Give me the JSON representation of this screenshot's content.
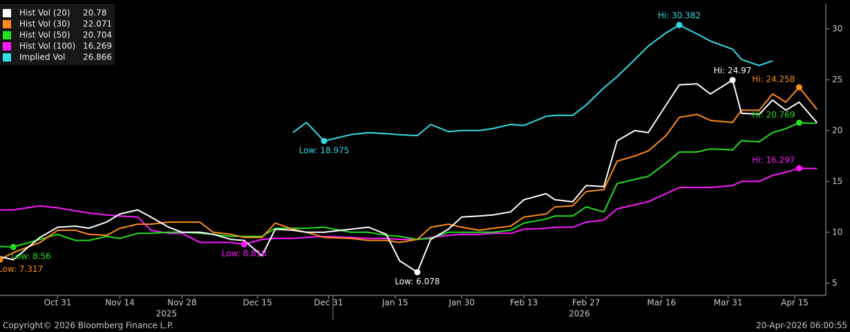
{
  "chart_data": {
    "type": "line",
    "x": [
      "2025-10-18",
      "2025-10-21",
      "2025-10-27",
      "2025-10-31",
      "2025-11-04",
      "2025-11-07",
      "2025-11-11",
      "2025-11-14",
      "2025-11-18",
      "2025-11-21",
      "2025-11-25",
      "2025-11-28",
      "2025-12-02",
      "2025-12-05",
      "2025-12-09",
      "2025-12-12",
      "2025-12-16",
      "2025-12-19",
      "2025-12-23",
      "2025-12-26",
      "2025-12-30",
      "2026-01-05",
      "2026-01-09",
      "2026-01-13",
      "2026-01-16",
      "2026-01-20",
      "2026-01-23",
      "2026-01-27",
      "2026-01-30",
      "2026-02-03",
      "2026-02-06",
      "2026-02-10",
      "2026-02-13",
      "2026-02-18",
      "2026-02-20",
      "2026-02-24",
      "2026-02-27",
      "2026-03-03",
      "2026-03-06",
      "2026-03-10",
      "2026-03-13",
      "2026-03-17",
      "2026-03-20",
      "2026-03-24",
      "2026-03-27",
      "2026-04-01",
      "2026-04-03",
      "2026-04-07",
      "2026-04-10",
      "2026-04-13",
      "2026-04-16",
      "2026-04-20"
    ],
    "series": [
      {
        "name": "Hist Vol (20)",
        "color": "#ffffff",
        "values": [
          7.6,
          7.3,
          9.5,
          10.5,
          10.6,
          10.4,
          11.0,
          11.8,
          12.2,
          11.5,
          10.5,
          10.0,
          10.0,
          9.8,
          9.3,
          9.2,
          7.7,
          10.3,
          10.2,
          10.0,
          10.0,
          10.3,
          10.5,
          9.8,
          7.2,
          6.078,
          9.3,
          10.3,
          11.5,
          11.6,
          11.7,
          12.0,
          13.2,
          13.8,
          13.2,
          13.0,
          14.6,
          14.5,
          19.0,
          20.0,
          19.8,
          22.5,
          24.5,
          24.6,
          23.6,
          24.97,
          21.7,
          21.6,
          23.0,
          22.0,
          22.8,
          20.78
        ],
        "annotations": [
          {
            "x": "2026-01-20",
            "value": 6.078,
            "label": "Low: 6.078",
            "position": "below"
          },
          {
            "x": "2026-04-01",
            "value": 24.97,
            "label": "Hi: 24.97",
            "position": "above"
          }
        ]
      },
      {
        "name": "Hist Vol (30)",
        "color": "#ff8c1a",
        "values": [
          7.317,
          8.0,
          9.0,
          10.2,
          10.2,
          9.8,
          9.7,
          10.4,
          10.8,
          10.8,
          11.0,
          11.0,
          11.0,
          10.0,
          9.8,
          9.5,
          9.5,
          10.9,
          10.3,
          10.0,
          9.5,
          9.4,
          9.2,
          9.2,
          9.0,
          9.3,
          10.5,
          10.8,
          10.5,
          10.2,
          10.4,
          10.6,
          11.5,
          11.8,
          12.5,
          12.6,
          14.0,
          14.2,
          17.0,
          17.5,
          18.0,
          19.5,
          21.3,
          21.6,
          21.0,
          20.8,
          22.0,
          22.0,
          23.6,
          22.8,
          24.258,
          22.071
        ],
        "annotations": [
          {
            "x": "2025-10-18",
            "value": 7.317,
            "label": "Low: 7.317",
            "position": "below-right"
          },
          {
            "x": "2026-04-16",
            "value": 24.258,
            "label": "Hi: 24.258",
            "position": "above-left"
          }
        ]
      },
      {
        "name": "Hist Vol (50)",
        "color": "#22e022",
        "values": [
          8.6,
          8.56,
          9.3,
          9.8,
          9.2,
          9.2,
          9.6,
          9.4,
          9.9,
          9.9,
          10.0,
          10.0,
          9.9,
          9.8,
          9.6,
          9.6,
          9.6,
          10.4,
          10.4,
          10.4,
          10.5,
          10.0,
          10.0,
          9.7,
          9.6,
          9.3,
          9.4,
          10.0,
          10.0,
          10.0,
          10.0,
          10.2,
          10.9,
          11.3,
          11.6,
          11.6,
          12.5,
          12.0,
          14.8,
          15.2,
          15.5,
          16.8,
          17.9,
          17.9,
          18.2,
          18.1,
          19.0,
          18.9,
          19.8,
          20.2,
          20.769,
          20.704
        ],
        "annotations": [
          {
            "x": "2025-10-21",
            "value": 8.56,
            "label": "Low: 8.56",
            "position": "below-right"
          },
          {
            "x": "2026-04-16",
            "value": 20.769,
            "label": "Hi: 20.769",
            "position": "above-left"
          }
        ]
      },
      {
        "name": "Hist Vol (100)",
        "color": "#ff1aff",
        "values": [
          12.2,
          12.2,
          12.6,
          12.4,
          12.1,
          11.9,
          11.7,
          11.6,
          11.5,
          10.2,
          9.9,
          9.9,
          9.0,
          9.0,
          9.0,
          8.818,
          9.3,
          9.4,
          9.4,
          9.5,
          9.6,
          9.5,
          9.4,
          9.4,
          9.3,
          9.3,
          9.5,
          9.7,
          9.8,
          9.8,
          9.9,
          9.9,
          10.3,
          10.4,
          10.5,
          10.5,
          11.0,
          11.2,
          12.3,
          12.7,
          13.0,
          13.8,
          14.4,
          14.4,
          14.4,
          14.6,
          15.0,
          15.0,
          15.6,
          15.9,
          16.297,
          16.269
        ],
        "annotations": [
          {
            "x": "2025-12-12",
            "value": 8.818,
            "label": "Low: 8.818",
            "position": "below"
          },
          {
            "x": "2026-04-16",
            "value": 16.297,
            "label": "Hi: 16.297",
            "position": "above-left"
          }
        ]
      },
      {
        "name": "Implied Vol",
        "color": "#33dde6",
        "values": [
          null,
          null,
          null,
          null,
          null,
          null,
          null,
          null,
          null,
          null,
          null,
          null,
          null,
          null,
          null,
          null,
          null,
          null,
          19.8,
          20.8,
          18.975,
          19.6,
          19.8,
          19.7,
          19.6,
          19.5,
          20.6,
          19.9,
          20.0,
          20.0,
          20.2,
          20.6,
          20.5,
          21.4,
          21.5,
          21.5,
          22.5,
          24.2,
          25.3,
          27.0,
          28.3,
          29.6,
          30.382,
          29.5,
          28.8,
          28.0,
          27.0,
          26.4,
          26.866,
          null,
          null,
          null
        ],
        "annotations": [
          {
            "x": "2025-12-30",
            "value": 18.975,
            "label": "Low: 18.975",
            "position": "below"
          },
          {
            "x": "2026-03-20",
            "value": 30.382,
            "label": "Hi: 30.382",
            "position": "above"
          }
        ]
      }
    ],
    "xlim": [
      "2025-10-18",
      "2026-04-22"
    ],
    "xticks": [
      {
        "value": "2025-10-31",
        "label": "Oct 31"
      },
      {
        "value": "2025-11-14",
        "label": "Nov 14"
      },
      {
        "value": "2025-11-28",
        "label": "Nov 28"
      },
      {
        "value": "2025-12-15",
        "label": "Dec 15"
      },
      {
        "value": "2025-12-31",
        "label": "Dec 31"
      },
      {
        "value": "2026-01-15",
        "label": "Jan 15"
      },
      {
        "value": "2026-01-30",
        "label": "Jan 30"
      },
      {
        "value": "2026-02-13",
        "label": "Feb 13"
      },
      {
        "value": "2026-02-27",
        "label": "Feb 27"
      },
      {
        "value": "2026-03-16",
        "label": "Mar 16"
      },
      {
        "value": "2026-03-31",
        "label": "Mar 31"
      },
      {
        "value": "2026-04-15",
        "label": "Apr 15"
      }
    ],
    "x_year_labels": [
      "2025",
      "2026"
    ],
    "ylim": [
      3.8,
      32.5
    ],
    "yticks": [
      5,
      10,
      15,
      20,
      25,
      30
    ],
    "legend": "top-left",
    "footer_left": "Copyright© 2026 Bloomberg Finance L.P.",
    "footer_right": "20-Apr-2026 06:00:55"
  }
}
